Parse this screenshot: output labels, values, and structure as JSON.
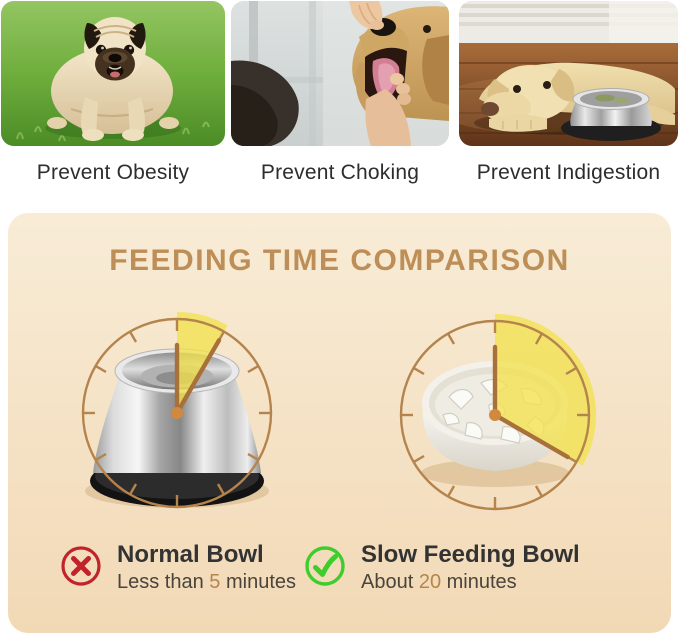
{
  "benefits": [
    {
      "label": "Prevent Obesity",
      "image": "overweight-pug-on-grass"
    },
    {
      "label": "Prevent Choking",
      "image": "hand-checking-dog-mouth"
    },
    {
      "label": "Prevent Indigestion",
      "image": "dog-lying-beside-food-bowl"
    }
  ],
  "comparison": {
    "title": "FEEDING TIME COMPARISON",
    "title_color": "#bd8e57",
    "panel_colors": {
      "top": "#f8ecd6",
      "bottom": "#f2d9b6"
    },
    "clock_style": {
      "ring_color": "#b5834c",
      "tick_color": "#b5834c",
      "wedge_color": "#f2e14e",
      "wedge_opacity": 0.78,
      "hand_color": "#a9713a",
      "dot_color": "#d0893f"
    },
    "clocks": [
      {
        "name": "normal-bowl-clock",
        "bowl": "stainless-steel-bowl",
        "minutes": 5,
        "wedge_degrees": 30
      },
      {
        "name": "slow-feeder-bowl-clock",
        "bowl": "white-slow-feeder-bowl",
        "minutes": 20,
        "wedge_degrees": 120
      }
    ],
    "legend": [
      {
        "icon": "cross-icon",
        "icon_color": "#c2232b",
        "title": "Normal Bowl",
        "time_prefix": "Less than ",
        "time_value": "5",
        "time_suffix": " minutes"
      },
      {
        "icon": "check-icon",
        "icon_color": "#3ecd2c",
        "title": "Slow Feeding Bowl",
        "time_prefix": "About ",
        "time_value": "20",
        "time_suffix": " minutes"
      }
    ],
    "highlight_color": "#b5854c"
  }
}
